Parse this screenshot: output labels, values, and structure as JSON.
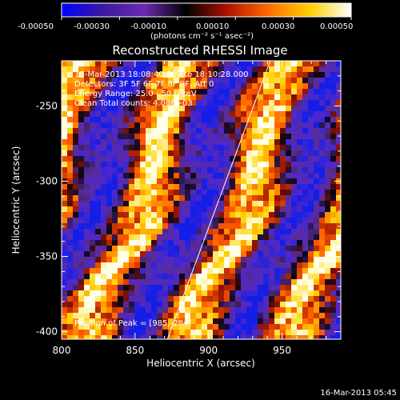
{
  "colorbar": {
    "ticks": [
      "-0.00050",
      "-0.00030",
      "-0.00010",
      "0.00010",
      "0.00030",
      "0.00050"
    ],
    "unit_label": "(photons cm⁻² s⁻¹ asec⁻²)",
    "range": [
      -0.0005,
      0.0005
    ],
    "colors": [
      "#0000ff",
      "#3a1aa0",
      "#6a2ab0",
      "#000000",
      "#b01000",
      "#ff6a00",
      "#ffd000",
      "#ffffff"
    ]
  },
  "chart_data": {
    "type": "heatmap",
    "title": "Reconstructed RHESSI Image",
    "xlabel": "Heliocentric X (arcsec)",
    "ylabel": "Heliocentric Y (arcsec)",
    "xlim": [
      800,
      990
    ],
    "ylim": [
      -405,
      -220
    ],
    "x_ticks": [
      800,
      850,
      900,
      950
    ],
    "y_ticks": [
      -250,
      -300,
      -350,
      -400
    ],
    "annotations": [
      "15-Mar-2013 18:08:40.000 to 18:10:28.000",
      "Detectors: 3F 5F 6F 7F 8F 9F, Att 0",
      "Energy Range: 25.0 - 50.0 keV",
      "Clean    Total counts: 4.08E+03"
    ],
    "peak_label": "Position of Peak = [985,-284]",
    "limb": [
      [
        942,
        -220
      ],
      [
        872,
        -405
      ]
    ]
  },
  "footer": {
    "timestamp": "16-Mar-2013 05:45"
  }
}
